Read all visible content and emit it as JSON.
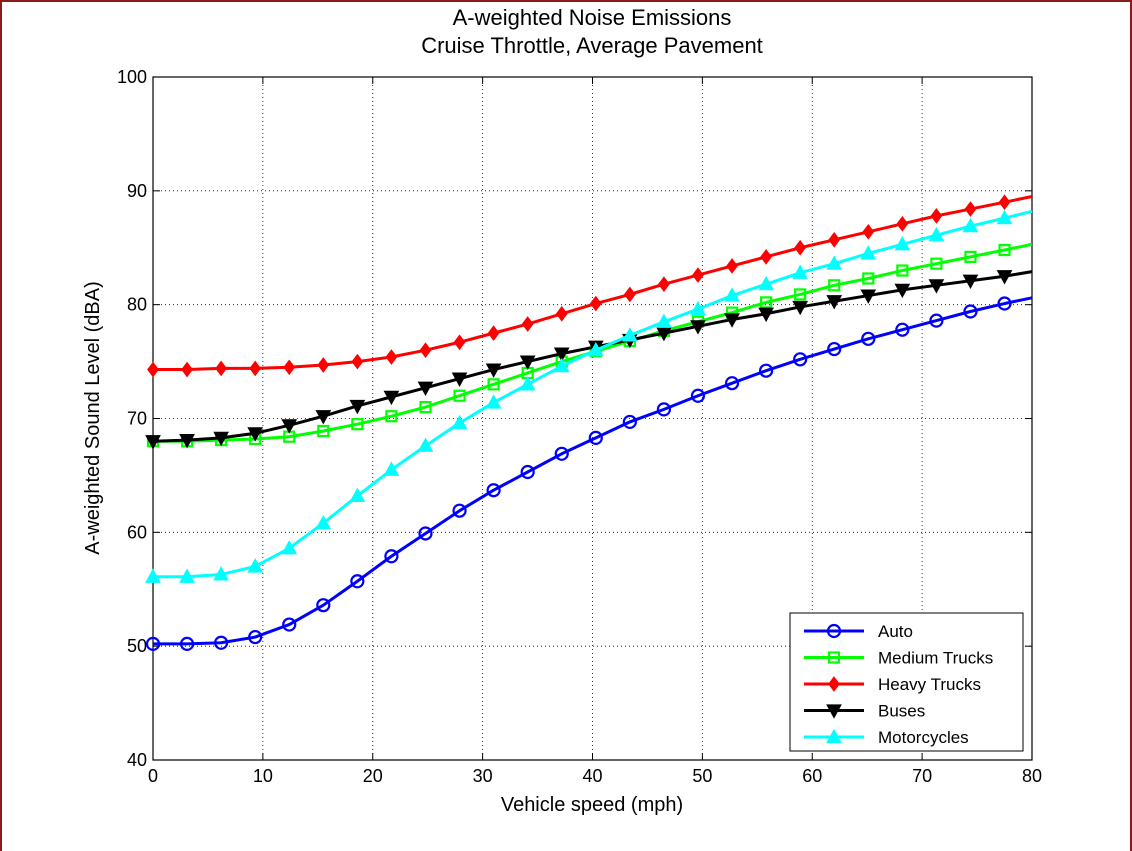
{
  "chart_data": {
    "type": "line",
    "title": "A-weighted Noise Emissions",
    "subtitle": "Cruise Throttle, Average Pavement",
    "xlabel": "Vehicle speed (mph)",
    "ylabel": "A-weighted Sound Level (dBA)",
    "xlim": [
      0,
      80
    ],
    "ylim": [
      40,
      100
    ],
    "xticks": [
      0,
      10,
      20,
      30,
      40,
      50,
      60,
      70,
      80
    ],
    "yticks": [
      40,
      50,
      60,
      70,
      80,
      90,
      100
    ],
    "grid": true,
    "legend_position": "bottom-right",
    "x": [
      0,
      3.1,
      6.2,
      9.3,
      12.4,
      15.5,
      18.6,
      21.7,
      24.8,
      27.9,
      31.0,
      34.1,
      37.2,
      40.3,
      43.4,
      46.5,
      49.6,
      52.7,
      55.8,
      58.9,
      62.0,
      65.1,
      68.2,
      71.3,
      74.4,
      77.5,
      80.0
    ],
    "series": [
      {
        "name": "Auto",
        "color": "#0000ff",
        "marker": "circle",
        "values": [
          50.2,
          50.2,
          50.3,
          50.8,
          51.9,
          53.6,
          55.7,
          57.9,
          59.9,
          61.9,
          63.7,
          65.3,
          66.9,
          68.3,
          69.7,
          70.8,
          72.0,
          73.1,
          74.2,
          75.2,
          76.1,
          77.0,
          77.8,
          78.6,
          79.4,
          80.1,
          80.6
        ]
      },
      {
        "name": "Medium Trucks",
        "color": "#00ff00",
        "marker": "square",
        "values": [
          68.0,
          68.0,
          68.1,
          68.2,
          68.4,
          68.9,
          69.5,
          70.2,
          71.0,
          72.0,
          73.0,
          74.0,
          75.0,
          75.9,
          76.8,
          77.7,
          78.5,
          79.3,
          80.2,
          80.9,
          81.7,
          82.3,
          83.0,
          83.6,
          84.2,
          84.8,
          85.3
        ]
      },
      {
        "name": "Heavy Trucks",
        "color": "#ff0000",
        "marker": "diamond",
        "values": [
          74.3,
          74.3,
          74.4,
          74.4,
          74.5,
          74.7,
          75.0,
          75.4,
          76.0,
          76.7,
          77.5,
          78.3,
          79.2,
          80.1,
          80.9,
          81.8,
          82.6,
          83.4,
          84.2,
          85.0,
          85.7,
          86.4,
          87.1,
          87.8,
          88.4,
          89.0,
          89.5
        ]
      },
      {
        "name": "Buses",
        "color": "#000000",
        "marker": "triangle-down",
        "values": [
          68.0,
          68.1,
          68.3,
          68.7,
          69.4,
          70.2,
          71.1,
          71.9,
          72.7,
          73.5,
          74.3,
          75.0,
          75.7,
          76.3,
          76.9,
          77.5,
          78.1,
          78.7,
          79.2,
          79.8,
          80.3,
          80.8,
          81.3,
          81.7,
          82.1,
          82.5,
          82.9
        ]
      },
      {
        "name": "Motorcycles",
        "color": "#00ffff",
        "marker": "triangle-up",
        "values": [
          56.1,
          56.1,
          56.3,
          57.0,
          58.6,
          60.8,
          63.2,
          65.5,
          67.6,
          69.6,
          71.4,
          73.0,
          74.6,
          76.0,
          77.3,
          78.5,
          79.6,
          80.8,
          81.8,
          82.8,
          83.6,
          84.5,
          85.3,
          86.1,
          86.9,
          87.6,
          88.2
        ]
      }
    ]
  }
}
